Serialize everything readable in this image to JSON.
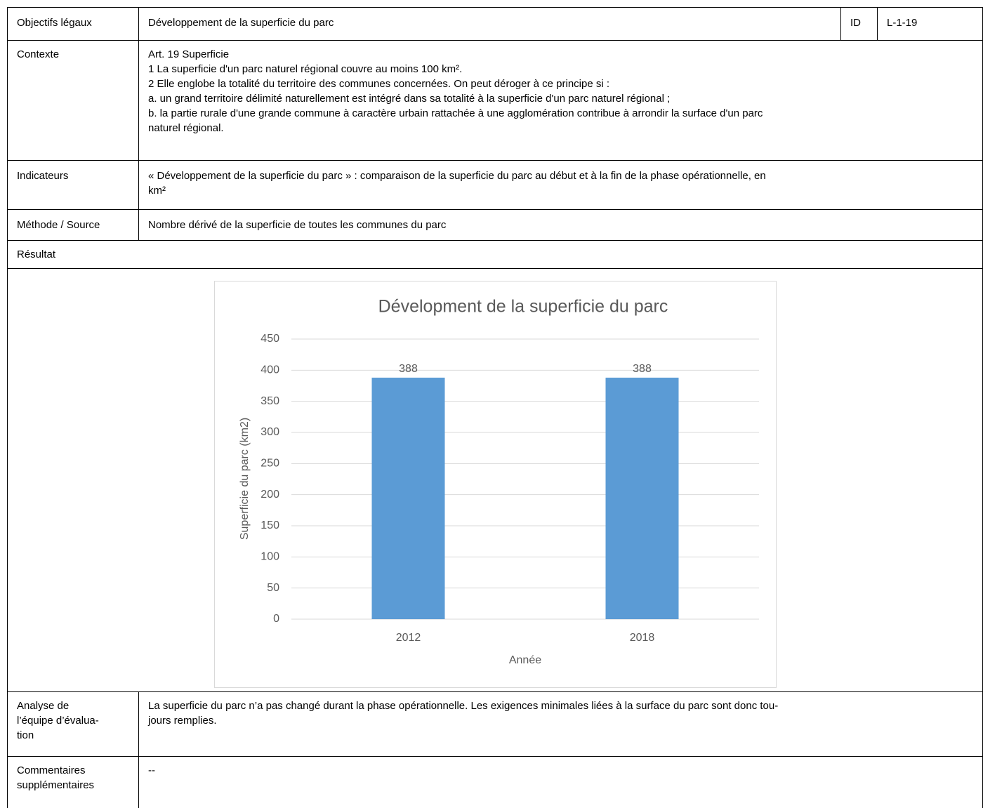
{
  "header": {
    "label": "Objectifs légaux",
    "title": "Développement de la superficie du parc",
    "id_label": "ID",
    "id": "L-1-19"
  },
  "context": {
    "label": "Contexte",
    "lines": [
      "Art. 19 Superficie",
      "1 La superficie d'un parc naturel régional couvre au moins 100 km².",
      "2 Elle englobe la totalité du territoire des communes concernées. On peut déroger à ce principe si :",
      "a. un grand territoire délimité naturellement est intégré dans sa totalité à la superficie d'un parc naturel régional ;",
      "b. la partie rurale d'une grande commune à caractère urbain rattachée à une agglomération contribue à arrondir la surface d'un parc",
      "naturel régional."
    ]
  },
  "indicators": {
    "label": "Indicateurs",
    "lines": [
      "« Développement de la superficie du parc » : comparaison de la superficie du parc au début et à la fin de la phase opérationnelle, en",
      "km²"
    ]
  },
  "method": {
    "label": "Méthode / Source",
    "lines": [
      "Nombre dérivé de la superficie de toutes les communes du parc"
    ]
  },
  "result": {
    "label": "Résultat"
  },
  "chart_data": {
    "type": "bar",
    "title": "Dévelopment de la superficie du parc",
    "ylabel": "Superficie du parc (km2)",
    "xlabel": "Année",
    "categories": [
      "2012",
      "2018"
    ],
    "values": [
      388,
      388
    ],
    "color": "#5b9bd5",
    "ylim": [
      0,
      450
    ],
    "yticks": [
      0,
      50,
      100,
      150,
      200,
      250,
      300,
      350,
      400,
      450
    ],
    "grid": true
  },
  "analysis": {
    "label_lines": [
      "Analyse de",
      "l’équipe d’évalua-",
      "tion"
    ],
    "lines": [
      "La superficie du parc n’a pas changé durant la phase opérationnelle. Les exigences minimales liées à la surface du parc sont donc tou-",
      "jours remplies."
    ]
  },
  "comments": {
    "label_lines": [
      "Commentaires",
      "supplémentaires"
    ],
    "lines": [
      "--"
    ]
  }
}
